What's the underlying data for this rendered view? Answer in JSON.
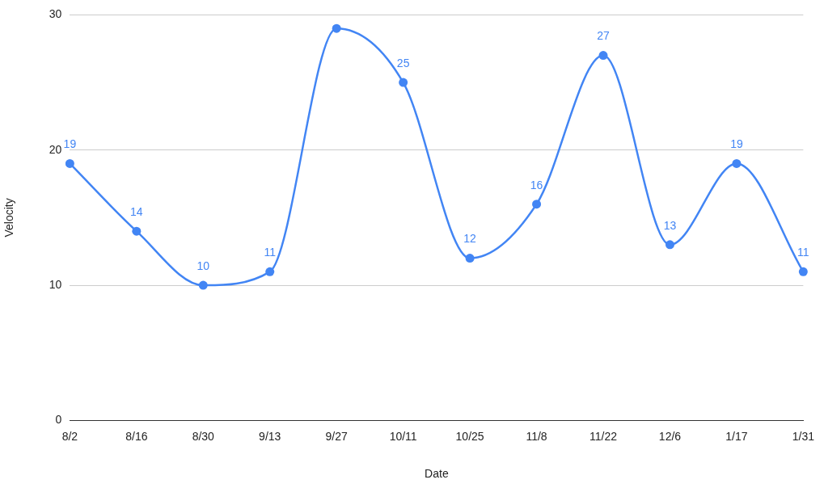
{
  "chart_data": {
    "type": "line",
    "xlabel": "Date",
    "ylabel": "Velocity",
    "categories": [
      "8/2",
      "8/16",
      "8/30",
      "9/13",
      "9/27",
      "10/11",
      "10/25",
      "11/8",
      "11/22",
      "12/6",
      "1/17",
      "1/31"
    ],
    "series": [
      {
        "color": "#4285f4",
        "values": [
          19,
          14,
          10,
          11,
          29,
          25,
          12,
          16,
          27,
          13,
          19,
          11
        ],
        "value_labels": [
          "19",
          "14",
          "10",
          "11",
          null,
          "25",
          "12",
          "16",
          "27",
          "13",
          "19",
          "11"
        ]
      }
    ],
    "ylim": [
      0,
      30
    ],
    "yticks": [
      0,
      10,
      20,
      30
    ],
    "grid": "y",
    "legend": false,
    "marker": "circle",
    "line_style": "solid"
  }
}
